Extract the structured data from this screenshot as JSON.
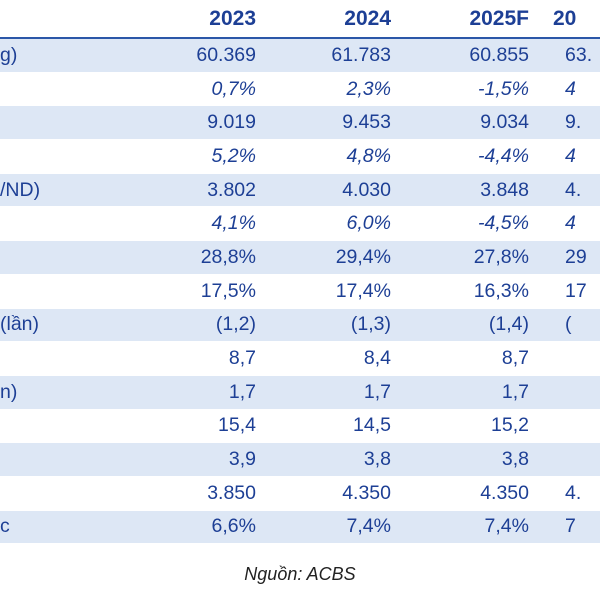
{
  "header": {
    "label": "",
    "years": [
      "2023",
      "2024",
      "2025F",
      "20"
    ]
  },
  "rows": [
    {
      "label": "g)",
      "values": [
        "60.369",
        "61.783",
        "60.855",
        "63."
      ],
      "italic": false,
      "shaded": true
    },
    {
      "label": "",
      "values": [
        "0,7%",
        "2,3%",
        "-1,5%",
        "4"
      ],
      "italic": true,
      "shaded": false
    },
    {
      "label": "",
      "values": [
        "9.019",
        "9.453",
        "9.034",
        "9."
      ],
      "italic": false,
      "shaded": true
    },
    {
      "label": "",
      "values": [
        "5,2%",
        "4,8%",
        "-4,4%",
        "4"
      ],
      "italic": true,
      "shaded": false
    },
    {
      "label": "/ND)",
      "values": [
        "3.802",
        "4.030",
        "3.848",
        "4."
      ],
      "italic": false,
      "shaded": true
    },
    {
      "label": "",
      "values": [
        "4,1%",
        "6,0%",
        "-4,5%",
        "4"
      ],
      "italic": true,
      "shaded": false
    },
    {
      "label": "",
      "values": [
        "28,8%",
        "29,4%",
        "27,8%",
        "29"
      ],
      "italic": false,
      "shaded": true
    },
    {
      "label": "",
      "values": [
        "17,5%",
        "17,4%",
        "16,3%",
        "17"
      ],
      "italic": false,
      "shaded": false
    },
    {
      "label": "(lần)",
      "values": [
        "(1,2)",
        "(1,3)",
        "(1,4)",
        "("
      ],
      "italic": false,
      "shaded": true
    },
    {
      "label": "",
      "values": [
        "8,7",
        "8,4",
        "8,7",
        ""
      ],
      "italic": false,
      "shaded": false
    },
    {
      "label": "n)",
      "values": [
        "1,7",
        "1,7",
        "1,7",
        ""
      ],
      "italic": false,
      "shaded": true
    },
    {
      "label": "",
      "values": [
        "15,4",
        "14,5",
        "15,2",
        ""
      ],
      "italic": false,
      "shaded": false
    },
    {
      "label": "",
      "values": [
        "3,9",
        "3,8",
        "3,8",
        ""
      ],
      "italic": false,
      "shaded": true
    },
    {
      "label": "",
      "values": [
        "3.850",
        "4.350",
        "4.350",
        "4."
      ],
      "italic": false,
      "shaded": false
    },
    {
      "label": "c",
      "values": [
        "6,6%",
        "7,4%",
        "7,4%",
        "7"
      ],
      "italic": false,
      "shaded": true
    }
  ],
  "source": "Nguồn: ACBS"
}
